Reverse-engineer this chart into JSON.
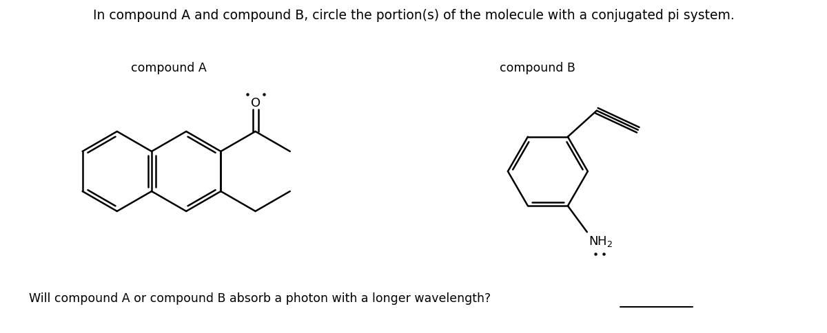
{
  "title_text": "In compound A and compound B, circle the portion(s) of the molecule with a conjugated pi system.",
  "compound_a_label": "compound A",
  "compound_b_label": "compound B",
  "question_text": "Will compound A or compound B absorb a photon with a longer wavelength?",
  "background_color": "#ffffff",
  "text_color": "#000000",
  "line_color": "#000000",
  "line_width": 1.8,
  "font_size_title": 13.5,
  "font_size_label": 12.5,
  "font_size_question": 12.5,
  "font_size_atom": 12
}
